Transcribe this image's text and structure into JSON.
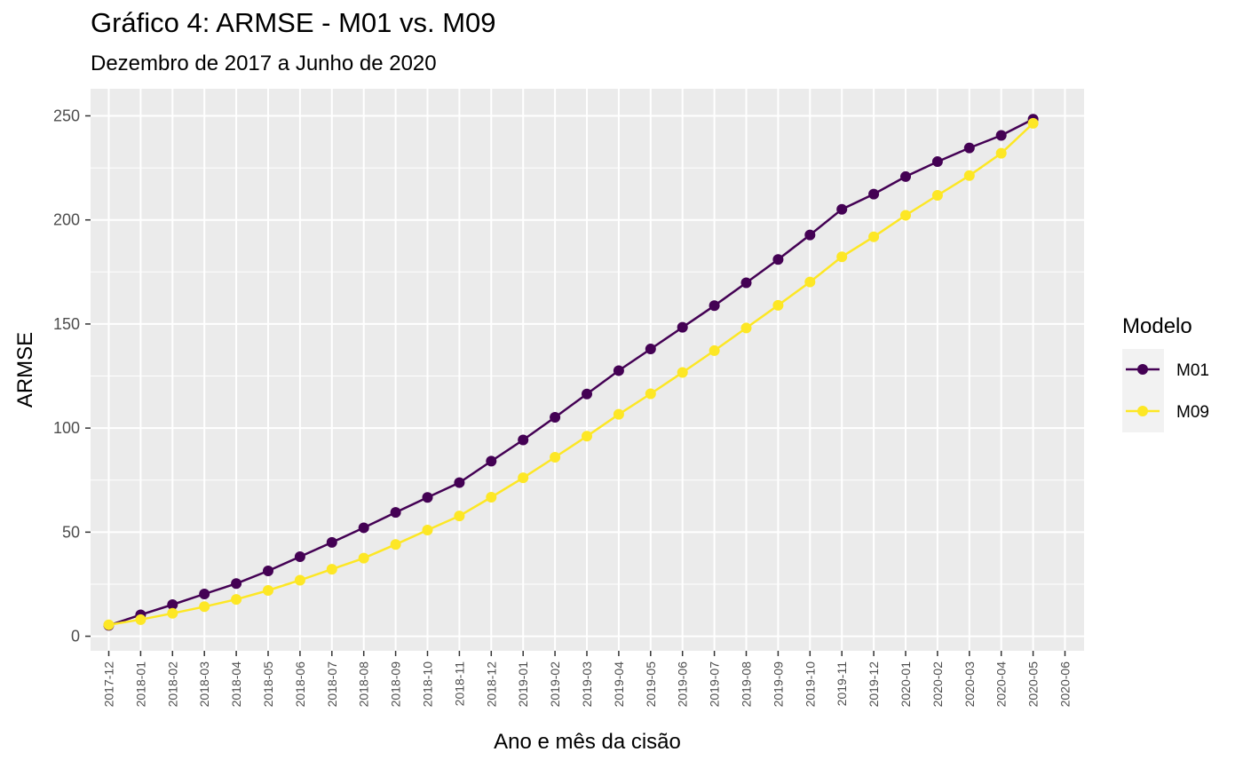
{
  "chart_data": {
    "type": "line",
    "title": "Gráfico 4: ARMSE - M01 vs. M09",
    "subtitle": "Dezembro de 2017 a Junho de 2020",
    "xlabel": "Ano e mês da cisão",
    "ylabel": "ARMSE",
    "x_ticks": [
      "2017-12",
      "2018-01",
      "2018-02",
      "2018-03",
      "2018-04",
      "2018-05",
      "2018-06",
      "2018-07",
      "2018-08",
      "2018-09",
      "2018-10",
      "2018-11",
      "2018-12",
      "2019-01",
      "2019-02",
      "2019-03",
      "2019-04",
      "2019-05",
      "2019-06",
      "2019-07",
      "2019-08",
      "2019-09",
      "2019-10",
      "2019-11",
      "2019-12",
      "2020-01",
      "2020-02",
      "2020-03",
      "2020-04",
      "2020-05",
      "2020-06"
    ],
    "x": [
      "2017-12",
      "2018-01",
      "2018-02",
      "2018-03",
      "2018-04",
      "2018-05",
      "2018-06",
      "2018-07",
      "2018-08",
      "2018-09",
      "2018-10",
      "2018-11",
      "2018-12",
      "2019-01",
      "2019-02",
      "2019-03",
      "2019-04",
      "2019-05",
      "2019-06",
      "2019-07",
      "2019-08",
      "2019-09",
      "2019-10",
      "2019-11",
      "2019-12",
      "2020-01",
      "2020-02",
      "2020-03",
      "2020-04",
      "2020-05"
    ],
    "y_ticks": [
      0,
      50,
      100,
      150,
      200,
      250
    ],
    "ylim": [
      -7,
      263
    ],
    "grid": true,
    "legend": {
      "title": "Modelo",
      "position": "right"
    },
    "series": [
      {
        "name": "M01",
        "color": "#440154",
        "values": [
          5.2,
          10.3,
          15.2,
          20.3,
          25.3,
          31.4,
          38.2,
          45.1,
          52.1,
          59.5,
          66.7,
          73.8,
          84.1,
          94.3,
          105.2,
          116.4,
          127.6,
          138.0,
          148.4,
          158.8,
          169.8,
          181.0,
          192.8,
          205.1,
          212.4,
          220.8,
          228.0,
          234.6,
          240.6,
          248.4
        ]
      },
      {
        "name": "M09",
        "color": "#FDE725",
        "values": [
          5.5,
          8.0,
          11.0,
          14.2,
          17.7,
          22.0,
          26.9,
          32.2,
          37.5,
          44.1,
          51.0,
          57.8,
          66.8,
          76.1,
          86.0,
          96.1,
          106.6,
          116.5,
          126.7,
          137.2,
          148.1,
          159.0,
          170.2,
          182.3,
          191.9,
          202.2,
          211.8,
          221.3,
          232.0,
          246.4
        ]
      }
    ]
  }
}
